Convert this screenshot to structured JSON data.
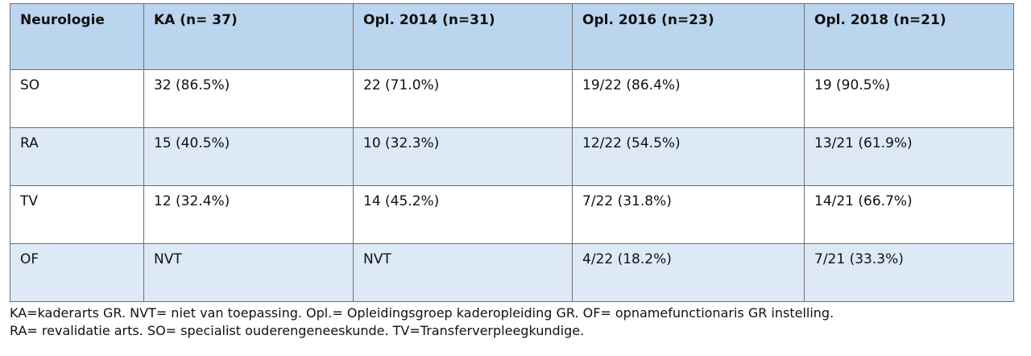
{
  "table": {
    "headers": [
      "Neurologie",
      "KA (n= 37)",
      "Opl. 2014 (n=31)",
      "Opl. 2016 (n=23)",
      "Opl. 2018 (n=21)"
    ],
    "rows": [
      [
        "SO",
        "32 (86.5%)",
        "22 (71.0%)",
        "19/22 (86.4%)",
        "19 (90.5%)"
      ],
      [
        "RA",
        "15 (40.5%)",
        "10 (32.3%)",
        "12/22 (54.5%)",
        "13/21 (61.9%)"
      ],
      [
        "TV",
        "12 (32.4%)",
        "14 (45.2%)",
        "7/22 (31.8%)",
        "14/21 (66.7%)"
      ],
      [
        "OF",
        "NVT",
        "NVT",
        "4/22 (18.2%)",
        "7/21 (33.3%)"
      ]
    ]
  },
  "footnote": {
    "line1": "KA=kaderarts GR. NVT= niet van toepassing. Opl.= Opleidingsgroep kaderopleiding GR. OF= opnamefunctionaris GR instelling.",
    "line2": "RA= revalidatie arts. SO= specialist ouderengeneeskunde. TV=Transferverpleegkundige."
  },
  "colors": {
    "header_bg": "#bcd5ee",
    "alt_row_bg": "#dde9f6",
    "border": "#6f6f6f"
  }
}
